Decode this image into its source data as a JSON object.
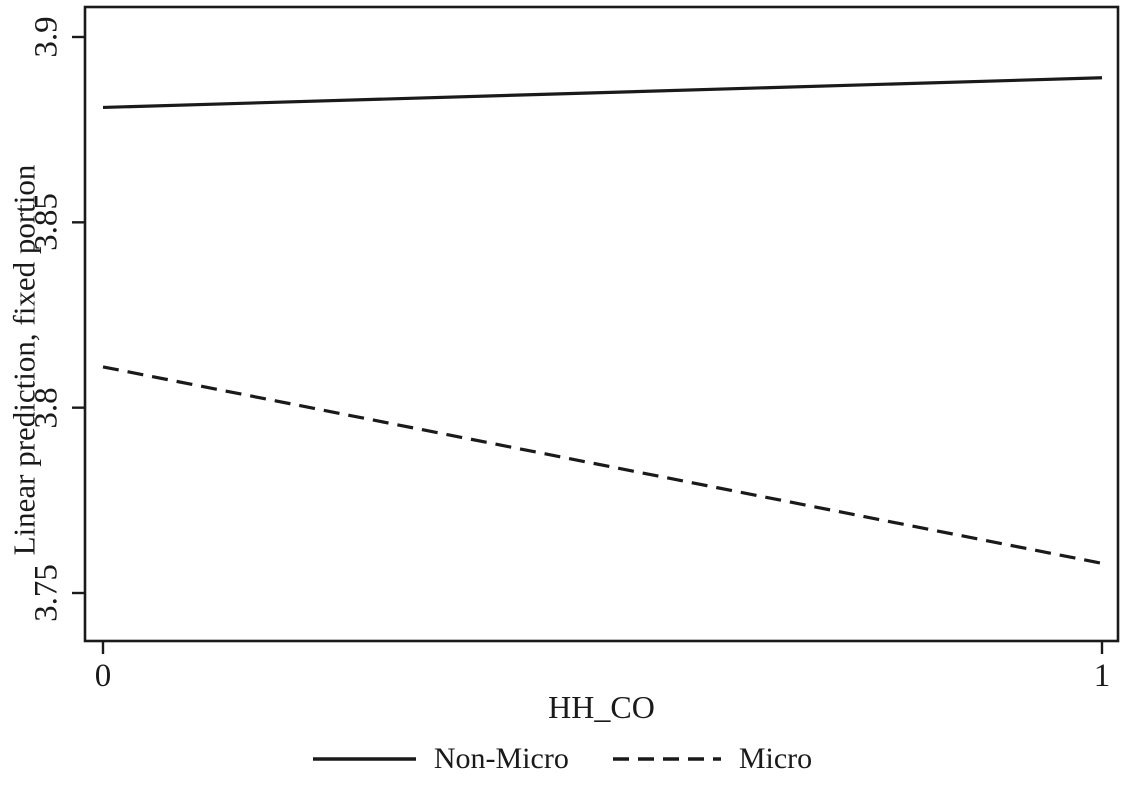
{
  "chart_data": {
    "type": "line",
    "title": "",
    "xlabel": "HH_CO",
    "ylabel": "Linear prediction, fixed portion",
    "xlim": [
      0,
      1
    ],
    "ylim": [
      3.737,
      3.908
    ],
    "grid": false,
    "legend_position": "bottom",
    "xticks": [
      {
        "value": 0,
        "label": "0"
      },
      {
        "value": 1,
        "label": "1"
      }
    ],
    "yticks": [
      {
        "value": 3.9,
        "label": "3.9"
      },
      {
        "value": 3.85,
        "label": "3.85"
      },
      {
        "value": 3.8,
        "label": "3.8"
      },
      {
        "value": 3.75,
        "label": "3.75"
      }
    ],
    "series": [
      {
        "name": "Non-Micro",
        "style": "solid",
        "color": "#1a1a1a",
        "x": [
          0,
          1
        ],
        "y": [
          3.881,
          3.889
        ]
      },
      {
        "name": "Micro",
        "style": "dashed",
        "color": "#1a1a1a",
        "x": [
          0,
          1
        ],
        "y": [
          3.811,
          3.758
        ]
      }
    ]
  },
  "colors": {
    "line": "#1a1a1a",
    "background": "#ffffff",
    "text": "#1a1a1a"
  }
}
